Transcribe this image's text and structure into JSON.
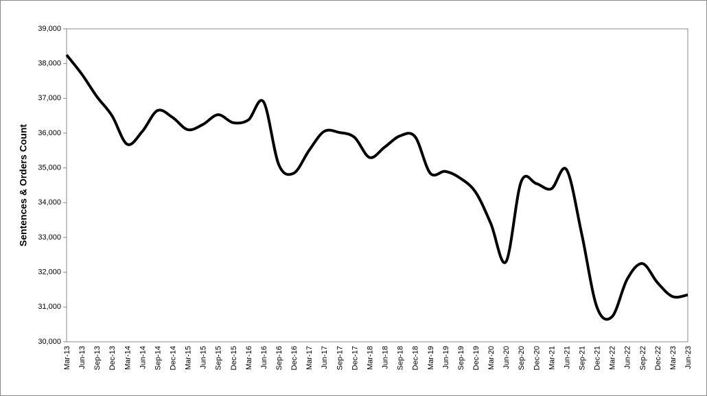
{
  "chart_data": {
    "type": "line",
    "y_label": "Sentences & Orders Count",
    "categories": [
      "Mar-13",
      "Jun-13",
      "Sep-13",
      "Dec-13",
      "Mar-14",
      "Jun-14",
      "Sep-14",
      "Dec-14",
      "Mar-15",
      "Jun-15",
      "Sep-15",
      "Dec-15",
      "Mar-16",
      "Jun-16",
      "Sep-16",
      "Dec-16",
      "Mar-17",
      "Jun-17",
      "Sep-17",
      "Dec-17",
      "Mar-18",
      "Jun-18",
      "Sep-18",
      "Dec-18",
      "Mar-19",
      "Jun-19",
      "Sep-19",
      "Dec-19",
      "Mar-20",
      "Jun-20",
      "Sep-20",
      "Dec-20",
      "Mar-21",
      "Jun-21",
      "Sep-21",
      "Dec-21",
      "Mar-22",
      "Jun-22",
      "Sep-22",
      "Dec-22",
      "Mar-23",
      "Jun-23"
    ],
    "values": [
      38250,
      37700,
      37050,
      36500,
      35680,
      36050,
      36650,
      36450,
      36100,
      36250,
      36530,
      36300,
      36380,
      36900,
      35100,
      34850,
      35500,
      36050,
      36020,
      35880,
      35300,
      35600,
      35920,
      35900,
      34850,
      34900,
      34700,
      34300,
      33400,
      32300,
      34600,
      34550,
      34400,
      34950,
      33100,
      31000,
      30720,
      31800,
      32250,
      31700,
      31300,
      31350
    ],
    "color": "#000000",
    "ylim": [
      30000,
      39000
    ],
    "yticks": [
      {
        "value": 30000,
        "label": "30,000"
      },
      {
        "value": 31000,
        "label": "31,000"
      },
      {
        "value": 32000,
        "label": "32,000"
      },
      {
        "value": 33000,
        "label": "33,000"
      },
      {
        "value": 34000,
        "label": "34,000"
      },
      {
        "value": 35000,
        "label": "35,000"
      },
      {
        "value": 36000,
        "label": "36,000"
      },
      {
        "value": 37000,
        "label": "37,000"
      },
      {
        "value": 38000,
        "label": "38,000"
      },
      {
        "value": 39000,
        "label": "39,000"
      }
    ],
    "grid": false
  }
}
